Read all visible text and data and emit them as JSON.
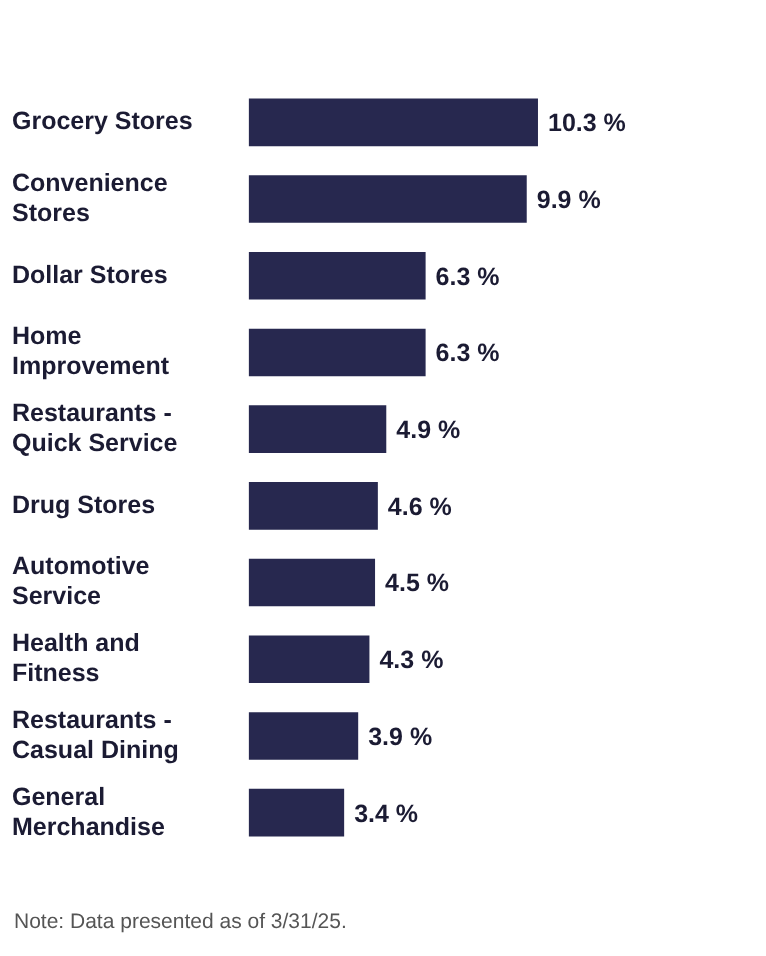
{
  "chart_data": {
    "type": "bar",
    "orientation": "horizontal",
    "categories": [
      "Grocery Stores",
      "Convenience Stores",
      "Dollar Stores",
      "Home Improvement",
      "Restaurants - Quick Service",
      "Drug Stores",
      "Automotive Service",
      "Health and Fitness",
      "Restaurants - Casual Dining",
      "General Merchandise"
    ],
    "values": [
      10.3,
      9.9,
      6.3,
      6.3,
      4.9,
      4.6,
      4.5,
      4.3,
      3.9,
      3.4
    ],
    "value_labels": [
      "10.3 %",
      "9.9 %",
      "6.3 %",
      "6.3 %",
      "4.9 %",
      "4.6 %",
      "4.5 %",
      "4.3 %",
      "3.9 %",
      "3.4 %"
    ],
    "color": "#27284f",
    "grid": false,
    "legend": false,
    "annotations": [
      "Note: Data presented as of 3/31/25."
    ]
  }
}
